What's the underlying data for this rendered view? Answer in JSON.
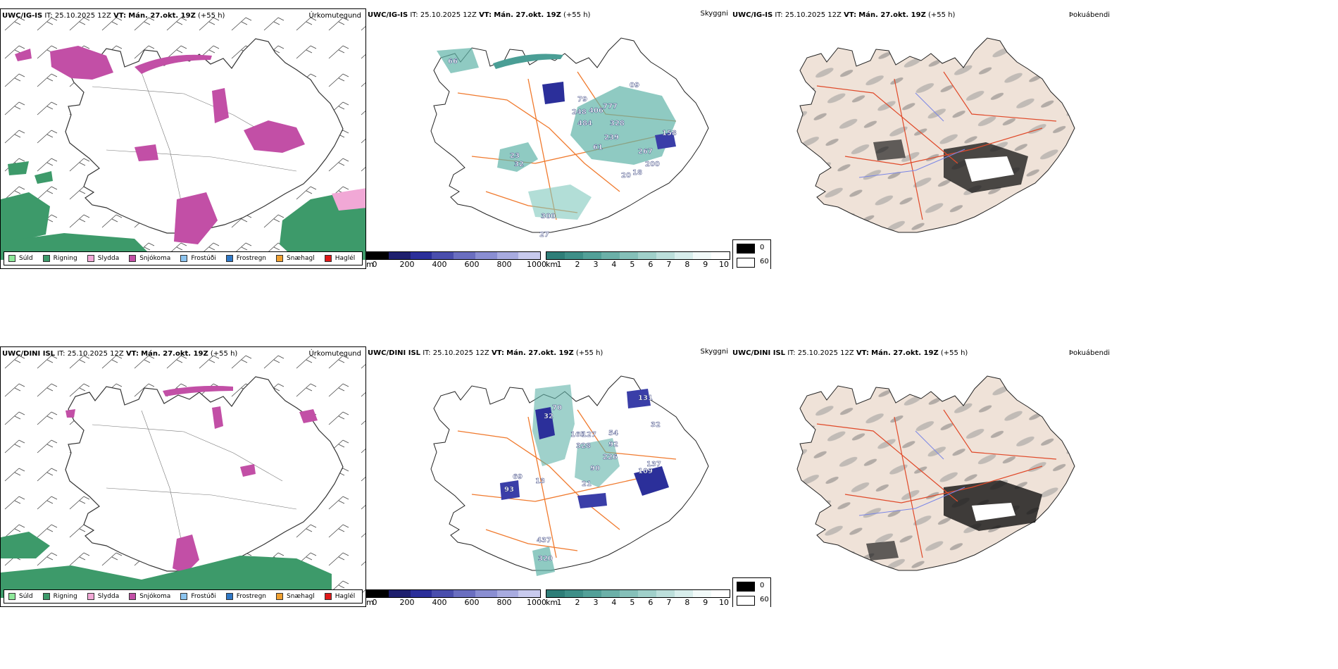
{
  "colors": {
    "rain": "#3d9a6a",
    "drizzle": "#8ee89a",
    "sleet": "#f1a8d6",
    "snow": "#c24fa6",
    "freezing_drizzle": "#8cc4ef",
    "freezing_rain": "#2f78c6",
    "graupel": "#f0a030",
    "hail": "#e01818",
    "land_fog": "#efe2d8",
    "roads": "#f07a2e"
  },
  "rows": [
    {
      "model": "UWC/IG-IS",
      "it_label": "IT:",
      "it_value": "25.10.2025 12Z",
      "vt_label": "VT:",
      "vt_value": "Mán. 27.okt. 19Z",
      "lead": "(+55 h)",
      "precip_title": "Úrkomutegund",
      "vis_title": "Skyggni",
      "fog_title": "Þokuábendi",
      "cloud_labels": [
        "66",
        "79",
        "777",
        "248",
        "406",
        "484",
        "328",
        "239",
        "61",
        "267",
        "200",
        "20",
        "18",
        "158",
        "23",
        "32",
        "300",
        "27",
        "09"
      ]
    },
    {
      "model": "UWC/DINI ISL",
      "it_label": "IT:",
      "it_value": "25.10.2025 12Z",
      "vt_label": "VT:",
      "vt_value": "Mán. 27.okt. 19Z",
      "lead": "(+55 h)",
      "precip_title": "Úrkomutegund",
      "vis_title": "Skyggni",
      "fog_title": "Þokuábendi",
      "cloud_labels": [
        "32",
        "70",
        "165",
        "127",
        "328",
        "54",
        "92",
        "226",
        "90",
        "21",
        "13",
        "109",
        "137",
        "93",
        "69",
        "437",
        "320",
        "131",
        "32"
      ]
    }
  ],
  "precip_legend": [
    "Súld",
    "Rigning",
    "Slydda",
    "Snjókoma",
    "Frostúði",
    "Frostregn",
    "Snæhagl",
    "Haglél"
  ],
  "cloud_scale": {
    "unit": "m",
    "ticks": [
      "0",
      "200",
      "400",
      "600",
      "800",
      "1000"
    ]
  },
  "vis_scale": {
    "unit": "km",
    "ticks": [
      "1",
      "2",
      "3",
      "4",
      "5",
      "6",
      "7",
      "8",
      "9",
      "10"
    ]
  },
  "fog_legend": {
    "low": "0",
    "high": "60"
  }
}
